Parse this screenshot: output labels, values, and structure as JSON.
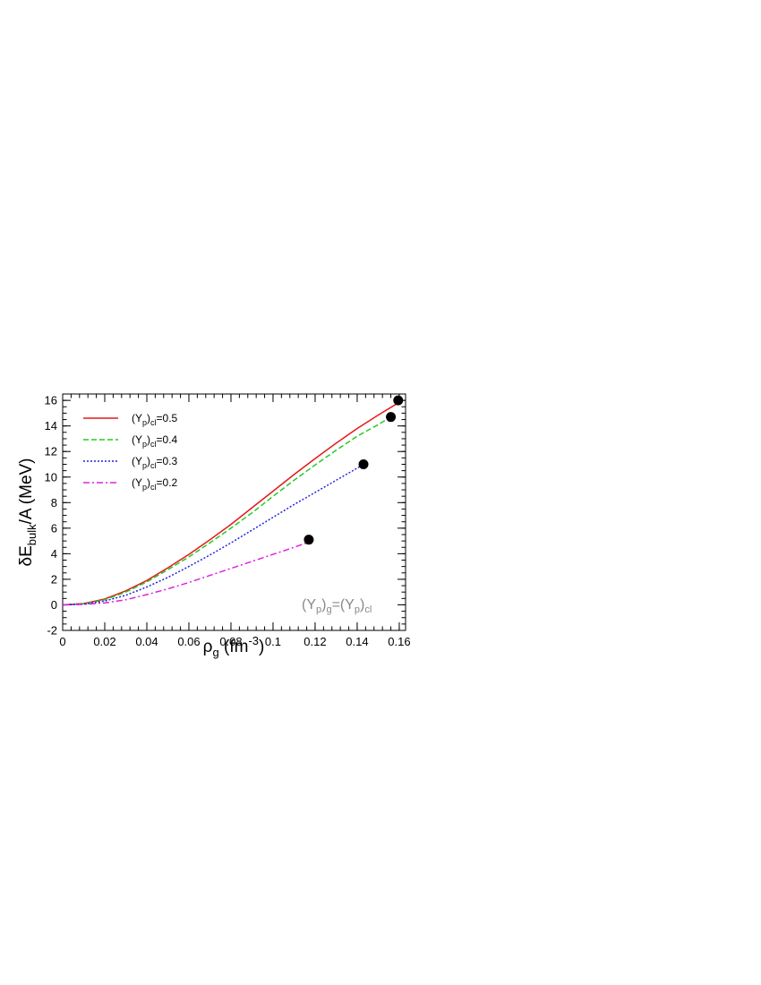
{
  "chart_data": {
    "type": "line",
    "xlabel": {
      "main": "ρ",
      "sub": "g",
      "unit_pre": " (fm",
      "unit_sup": "-3",
      "unit_post": ")"
    },
    "ylabel": {
      "main": "δE",
      "sub": "bulk",
      "post": "/A (MeV)"
    },
    "xlim": [
      0,
      0.163
    ],
    "ylim": [
      -2,
      16.5
    ],
    "xticks": [
      0,
      0.02,
      0.04,
      0.06,
      0.08,
      0.1,
      0.12,
      0.14,
      0.16
    ],
    "xtick_labels": [
      "0",
      "0.02",
      "0.04",
      "0.06",
      "0.08",
      "0.1",
      "0.12",
      "0.14",
      "0.16"
    ],
    "yticks": [
      -2,
      0,
      2,
      4,
      6,
      8,
      10,
      12,
      14,
      16
    ],
    "ytick_labels": [
      "-2",
      "0",
      "2",
      "4",
      "6",
      "8",
      "10",
      "12",
      "14",
      "16"
    ],
    "grid": false,
    "legend_position": "top-left",
    "series": [
      {
        "name": "0.5",
        "color": "#e41a1c",
        "dash": "",
        "x": [
          0,
          0.01,
          0.02,
          0.03,
          0.04,
          0.05,
          0.06,
          0.07,
          0.08,
          0.09,
          0.1,
          0.11,
          0.12,
          0.13,
          0.14,
          0.15,
          0.159
        ],
        "y": [
          0,
          0.1,
          0.45,
          1.1,
          1.9,
          2.9,
          3.95,
          5.1,
          6.3,
          7.6,
          8.9,
          10.2,
          11.45,
          12.65,
          13.8,
          14.85,
          15.75
        ],
        "endpoint": [
          0.1595,
          16.0
        ]
      },
      {
        "name": "0.4",
        "color": "#22cc22",
        "dash": "6,3",
        "x": [
          0,
          0.01,
          0.02,
          0.03,
          0.04,
          0.05,
          0.06,
          0.07,
          0.08,
          0.09,
          0.1,
          0.11,
          0.12,
          0.13,
          0.14,
          0.15,
          0.155
        ],
        "y": [
          0,
          0.08,
          0.4,
          1.0,
          1.8,
          2.75,
          3.75,
          4.85,
          6.0,
          7.2,
          8.5,
          9.75,
          10.95,
          12.1,
          13.2,
          14.1,
          14.6
        ],
        "endpoint": [
          0.156,
          14.7
        ]
      },
      {
        "name": "0.3",
        "color": "#2222dd",
        "dash": "2,2",
        "x": [
          0,
          0.01,
          0.02,
          0.03,
          0.04,
          0.05,
          0.06,
          0.07,
          0.08,
          0.09,
          0.1,
          0.11,
          0.12,
          0.13,
          0.14,
          0.142
        ],
        "y": [
          0,
          0.05,
          0.3,
          0.75,
          1.4,
          2.15,
          3.0,
          3.9,
          4.85,
          5.85,
          6.85,
          7.85,
          8.8,
          9.75,
          10.7,
          10.9
        ],
        "endpoint": [
          0.143,
          11.0
        ]
      },
      {
        "name": "0.2",
        "color": "#dd22dd",
        "dash": "7,3,2,3",
        "x": [
          0,
          0.01,
          0.02,
          0.03,
          0.04,
          0.05,
          0.06,
          0.07,
          0.08,
          0.09,
          0.1,
          0.11,
          0.116
        ],
        "y": [
          0,
          0.03,
          0.15,
          0.4,
          0.8,
          1.25,
          1.75,
          2.3,
          2.85,
          3.4,
          3.95,
          4.5,
          4.85
        ],
        "endpoint": [
          0.117,
          5.1
        ]
      }
    ],
    "legend_label": {
      "pre": "(Y",
      "sub1": "p",
      "mid": ")",
      "sub2": "cl",
      "eq": "="
    },
    "annotation": {
      "a": "(Y",
      "b": "p",
      "c": ")",
      "d": "g",
      "e": "=(Y",
      "f": "p",
      "g": ")",
      "h": "cl"
    }
  }
}
